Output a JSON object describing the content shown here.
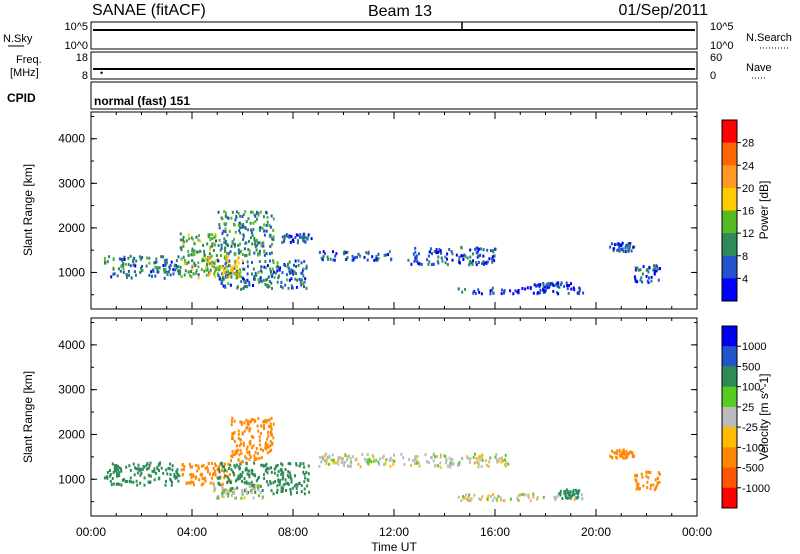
{
  "header": {
    "radar": "SANAE (fitACF)",
    "beam": "Beam 13",
    "date": "01/Sep/2011"
  },
  "panels": {
    "nsky": {
      "label": "N.Sky",
      "ticks_left": [
        "10^5",
        "10^0"
      ],
      "ticks_right": [
        "10^5",
        "10^0"
      ],
      "right_label": "N.Search"
    },
    "freq": {
      "label_line1": "Freq.",
      "label_line2": "[MHz]",
      "ticks_left": [
        "18",
        "8"
      ],
      "ticks_right": [
        "60",
        "0"
      ],
      "right_label": "Nave"
    },
    "cpid": {
      "label": "CPID",
      "text": "normal (fast) 151"
    }
  },
  "colors": {
    "power": [
      "#0000ff",
      "#2255cc",
      "#2e8b57",
      "#55bb22",
      "#ffcc00",
      "#ff9922",
      "#ff6600",
      "#ff0000"
    ],
    "velocity": [
      "#0000ee",
      "#2255cc",
      "#2e8b57",
      "#55cc22",
      "#bbbbbb",
      "#ffbb00",
      "#ff8800",
      "#ff5500",
      "#ff0000"
    ]
  },
  "chart_data": [
    {
      "type": "heatmap",
      "name": "power",
      "ylabel": "Slant Range [km]",
      "xlabel": "",
      "yticks": [
        "1000",
        "2000",
        "3000",
        "4000"
      ],
      "ylim": [
        180,
        4600
      ],
      "xlim": [
        0,
        24
      ],
      "colorbar": {
        "label": "Power [dB]",
        "ticks": [
          "4",
          "8",
          "12",
          "16",
          "20",
          "24",
          "28"
        ],
        "range": [
          0,
          32
        ]
      },
      "clusters": [
        {
          "x0": 0.5,
          "x1": 3.5,
          "y0": 900,
          "y1": 1400,
          "value": 8
        },
        {
          "x0": 3.5,
          "x1": 5.0,
          "y0": 900,
          "y1": 1900,
          "value": 12
        },
        {
          "x0": 5.0,
          "x1": 8.6,
          "y0": 650,
          "y1": 1300,
          "value": 8
        },
        {
          "x0": 5.0,
          "x1": 7.2,
          "y0": 1400,
          "y1": 2400,
          "value": 10
        },
        {
          "x0": 4.5,
          "x1": 6.0,
          "y0": 900,
          "y1": 1400,
          "value": 18
        },
        {
          "x0": 7.5,
          "x1": 8.7,
          "y0": 1700,
          "y1": 1900,
          "value": 6
        },
        {
          "x0": 9.0,
          "x1": 12.0,
          "y0": 1300,
          "y1": 1500,
          "value": 6
        },
        {
          "x0": 12.5,
          "x1": 16.0,
          "y0": 1200,
          "y1": 1600,
          "value": 6
        },
        {
          "x0": 14.5,
          "x1": 19.5,
          "y0": 550,
          "y1": 700,
          "value": 4
        },
        {
          "x0": 17.5,
          "x1": 19.0,
          "y0": 700,
          "y1": 800,
          "value": 4
        },
        {
          "x0": 20.5,
          "x1": 21.5,
          "y0": 1500,
          "y1": 1700,
          "value": 6
        },
        {
          "x0": 21.5,
          "x1": 22.5,
          "y0": 800,
          "y1": 1200,
          "value": 6
        }
      ]
    },
    {
      "type": "heatmap",
      "name": "velocity",
      "ylabel": "Slant Range [km]",
      "xlabel": "Time UT",
      "xticks": [
        "00:00",
        "04:00",
        "08:00",
        "12:00",
        "16:00",
        "20:00",
        "00:00"
      ],
      "yticks": [
        "1000",
        "2000",
        "3000",
        "4000"
      ],
      "ylim": [
        180,
        4600
      ],
      "xlim": [
        0,
        24
      ],
      "colorbar": {
        "label": "Velocity [m s^-1]",
        "ticks": [
          "1000",
          "500",
          "100",
          "25",
          "-25",
          "-100",
          "-500",
          "-1000"
        ]
      },
      "clusters": [
        {
          "x0": 0.5,
          "x1": 3.5,
          "y0": 900,
          "y1": 1400,
          "value": 100
        },
        {
          "x0": 3.5,
          "x1": 5.5,
          "y0": 900,
          "y1": 1400,
          "value": -100
        },
        {
          "x0": 5.0,
          "x1": 8.6,
          "y0": 700,
          "y1": 1400,
          "value": 100
        },
        {
          "x0": 5.5,
          "x1": 7.2,
          "y0": 1400,
          "y1": 2400,
          "value": -100
        },
        {
          "x0": 4.8,
          "x1": 6.8,
          "y0": 600,
          "y1": 900,
          "value": 0
        },
        {
          "x0": 9.0,
          "x1": 16.5,
          "y0": 1300,
          "y1": 1600,
          "value": 0
        },
        {
          "x0": 14.5,
          "x1": 19.5,
          "y0": 550,
          "y1": 700,
          "value": 0
        },
        {
          "x0": 18.5,
          "x1": 19.3,
          "y0": 600,
          "y1": 800,
          "value": 100
        },
        {
          "x0": 20.5,
          "x1": 21.5,
          "y0": 1500,
          "y1": 1700,
          "value": -100
        },
        {
          "x0": 21.5,
          "x1": 22.5,
          "y0": 800,
          "y1": 1200,
          "value": -100
        }
      ]
    }
  ]
}
